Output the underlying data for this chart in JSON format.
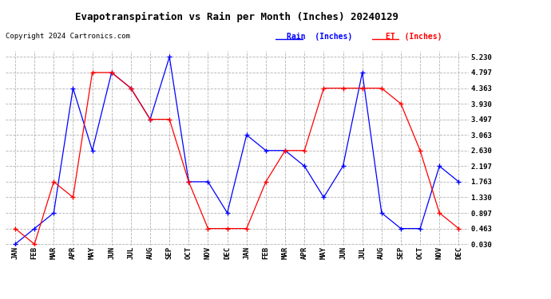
{
  "title": "Evapotranspiration vs Rain per Month (Inches) 20240129",
  "copyright": "Copyright 2024 Cartronics.com",
  "legend_rain": "Rain  (Inches)",
  "legend_et": "ET  (Inches)",
  "months": [
    "JAN",
    "FEB",
    "MAR",
    "APR",
    "MAY",
    "JUN",
    "JUL",
    "AUG",
    "SEP",
    "OCT",
    "NOV",
    "DEC",
    "JAN",
    "FEB",
    "MAR",
    "APR",
    "MAY",
    "JUN",
    "JUL",
    "AUG",
    "SEP",
    "OCT",
    "NOV",
    "DEC"
  ],
  "rain_blue": [
    0.03,
    0.463,
    0.897,
    4.363,
    2.63,
    4.797,
    4.363,
    3.497,
    5.23,
    1.763,
    1.763,
    0.897,
    3.063,
    2.63,
    2.63,
    2.197,
    1.33,
    2.197,
    4.797,
    0.897,
    0.463,
    0.463,
    2.197,
    1.763
  ],
  "et_red": [
    0.463,
    0.03,
    1.763,
    1.33,
    4.797,
    4.797,
    4.363,
    3.497,
    3.497,
    1.763,
    0.463,
    0.463,
    0.463,
    1.763,
    2.63,
    2.63,
    4.363,
    4.363,
    4.363,
    4.363,
    3.93,
    2.63,
    0.897,
    0.463
  ],
  "yticks": [
    0.03,
    0.463,
    0.897,
    1.33,
    1.763,
    2.197,
    2.63,
    3.063,
    3.497,
    3.93,
    4.363,
    4.797,
    5.23
  ],
  "rain_color": "#0000FF",
  "et_color": "#FF0000",
  "background_color": "#FFFFFF",
  "grid_color": "#AAAAAA"
}
